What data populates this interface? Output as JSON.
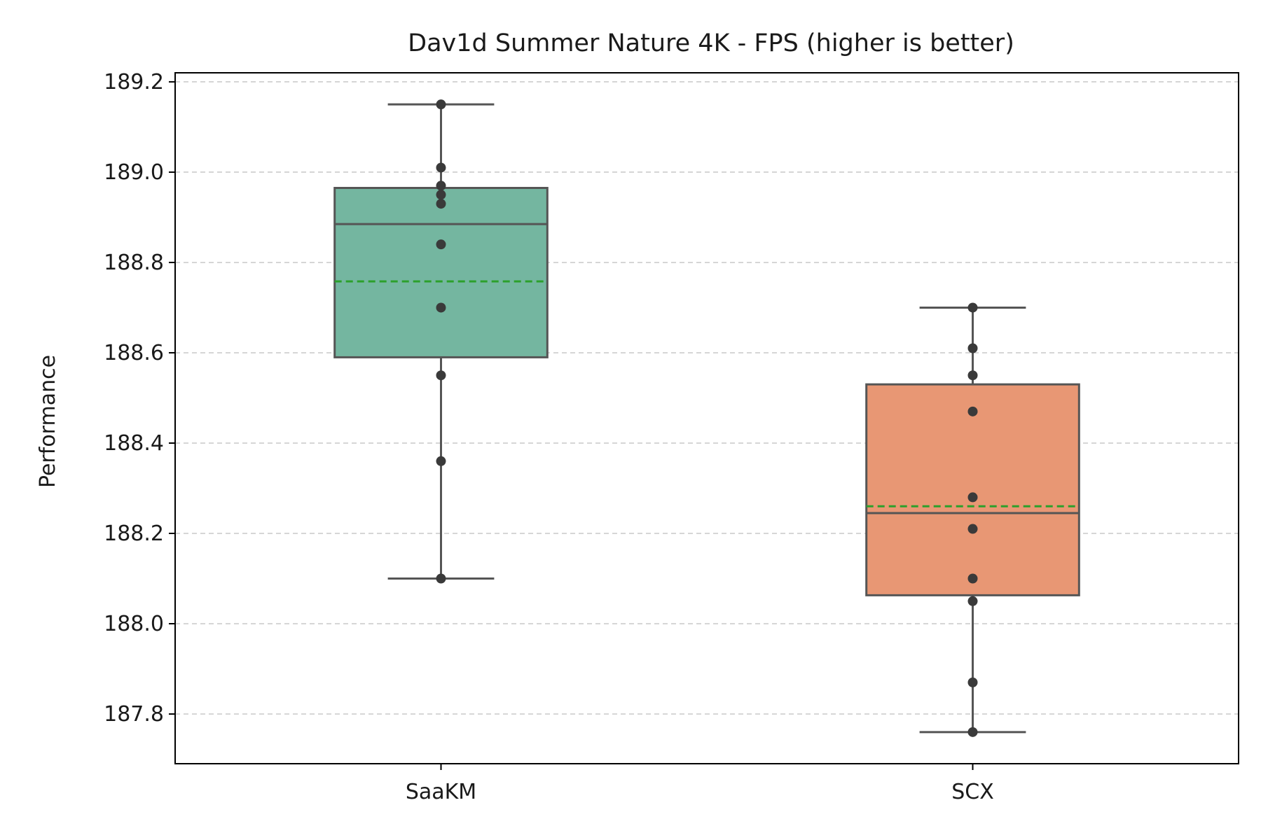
{
  "chart_data": {
    "type": "box",
    "title": "Dav1d Summer Nature 4K - FPS (higher is better)",
    "xlabel": "",
    "ylabel": "Performance",
    "categories": [
      "SaaKM",
      "SCX"
    ],
    "ylim": [
      187.69,
      189.22
    ],
    "yticks": [
      187.8,
      188.0,
      188.2,
      188.4,
      188.6,
      188.8,
      189.0,
      189.2
    ],
    "ytick_labels": [
      "187.8",
      "188.0",
      "188.2",
      "188.4",
      "188.6",
      "188.8",
      "189.0",
      "189.2"
    ],
    "grid": "horizontal-dashed",
    "series": [
      {
        "name": "SaaKM",
        "color": "#74b6a0",
        "whisker_low": 188.1,
        "q1": 188.59,
        "median": 188.885,
        "q3": 188.965,
        "whisker_high": 189.15,
        "mean": 188.758,
        "points": [
          189.15,
          189.01,
          188.97,
          188.95,
          188.93,
          188.84,
          188.7,
          188.55,
          188.36,
          188.1
        ]
      },
      {
        "name": "SCX",
        "color": "#e89774",
        "whisker_low": 187.76,
        "q1": 188.063,
        "median": 188.245,
        "q3": 188.53,
        "whisker_high": 188.7,
        "mean": 188.26,
        "points": [
          188.7,
          188.61,
          188.55,
          188.47,
          188.28,
          188.21,
          188.1,
          188.05,
          187.87,
          187.76
        ]
      }
    ],
    "mean_line_color": "#2ca02c",
    "box_edge_color": "#555555",
    "point_color": "#3a3a3a",
    "grid_color": "#c8c8c8"
  }
}
